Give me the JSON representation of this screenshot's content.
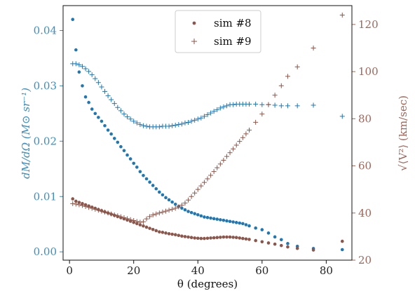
{
  "chart_data": {
    "type": "scatter",
    "title": "",
    "xlabel": "θ (degrees)",
    "ylabel_left": "dM/dΩ (M⊙ sr⁻¹)",
    "ylabel_right": "√⟨V²⟩ (km/sec)",
    "xlim": [
      -2,
      88
    ],
    "ylim_left": [
      -0.0015,
      0.0445
    ],
    "ylim_right": [
      20,
      128
    ],
    "x_ticks": [
      "0",
      "20",
      "40",
      "60",
      "80"
    ],
    "x_tick_values": [
      0,
      20,
      40,
      60,
      80
    ],
    "left_ticks": [
      "0.00",
      "0.01",
      "0.02",
      "0.03",
      "0.04"
    ],
    "left_tick_values": [
      0,
      0.01,
      0.02,
      0.03,
      0.04
    ],
    "right_ticks": [
      "20",
      "40",
      "60",
      "80",
      "100",
      "120"
    ],
    "right_tick_values": [
      20,
      40,
      60,
      80,
      100,
      120
    ],
    "legend_position": "upper-center",
    "colors": {
      "left_axis": "#3b8fc3",
      "right_axis": "#a0665a",
      "blue_series": "#1f77b4",
      "brown_series": "#8c564b"
    },
    "series": [
      {
        "name": "sim #8",
        "axis": "left",
        "marker": "dot",
        "color": "#1f77b4",
        "x": [
          1,
          2,
          3,
          4,
          5,
          6,
          7,
          8,
          9,
          10,
          11,
          12,
          13,
          14,
          15,
          16,
          17,
          18,
          19,
          20,
          21,
          22,
          23,
          24,
          25,
          26,
          27,
          28,
          29,
          30,
          31,
          32,
          33,
          34,
          35,
          36,
          37,
          38,
          39,
          40,
          41,
          42,
          43,
          44,
          45,
          46,
          47,
          48,
          49,
          50,
          51,
          52,
          53,
          54,
          55,
          56,
          58,
          60,
          62,
          64,
          66,
          68,
          71,
          76,
          85
        ],
        "y": [
          0.042,
          0.0365,
          0.0325,
          0.03,
          0.028,
          0.027,
          0.0258,
          0.025,
          0.0243,
          0.0236,
          0.0228,
          0.022,
          0.0213,
          0.0205,
          0.0198,
          0.019,
          0.0183,
          0.0175,
          0.0168,
          0.016,
          0.0153,
          0.0145,
          0.0138,
          0.0132,
          0.0126,
          0.012,
          0.0114,
          0.0108,
          0.0103,
          0.0098,
          0.0094,
          0.009,
          0.0086,
          0.0082,
          0.0079,
          0.0076,
          0.0073,
          0.0071,
          0.0069,
          0.0067,
          0.0065,
          0.0063,
          0.0062,
          0.0061,
          0.006,
          0.0059,
          0.0058,
          0.0057,
          0.0056,
          0.0055,
          0.0054,
          0.0053,
          0.0052,
          0.0051,
          0.0049,
          0.0047,
          0.0043,
          0.004,
          0.0034,
          0.0027,
          0.0022,
          0.0015,
          0.001,
          0.0006,
          0.0004
        ]
      },
      {
        "name": "sim #9",
        "axis": "left",
        "marker": "plus",
        "color": "#1f77b4",
        "x": [
          1,
          2,
          3,
          4,
          5,
          6,
          7,
          8,
          9,
          10,
          11,
          12,
          13,
          14,
          15,
          16,
          17,
          18,
          19,
          20,
          21,
          22,
          23,
          24,
          25,
          26,
          27,
          28,
          29,
          30,
          31,
          32,
          33,
          34,
          35,
          36,
          37,
          38,
          39,
          40,
          41,
          42,
          43,
          44,
          45,
          46,
          47,
          48,
          49,
          50,
          51,
          52,
          53,
          54,
          55,
          56,
          58,
          60,
          62,
          64,
          66,
          68,
          71,
          76,
          85
        ],
        "y": [
          0.034,
          0.034,
          0.0338,
          0.0335,
          0.0331,
          0.0326,
          0.032,
          0.0313,
          0.0306,
          0.0298,
          0.029,
          0.0282,
          0.0275,
          0.0268,
          0.0261,
          0.0255,
          0.0249,
          0.0244,
          0.024,
          0.0236,
          0.0233,
          0.023,
          0.0228,
          0.0227,
          0.0226,
          0.0226,
          0.0226,
          0.0226,
          0.0227,
          0.0227,
          0.0227,
          0.0228,
          0.0229,
          0.023,
          0.0231,
          0.0233,
          0.0234,
          0.0236,
          0.0238,
          0.024,
          0.0242,
          0.0245,
          0.0248,
          0.0251,
          0.0254,
          0.0257,
          0.026,
          0.0262,
          0.0264,
          0.0266,
          0.0266,
          0.0267,
          0.0267,
          0.0267,
          0.0267,
          0.0267,
          0.0267,
          0.0266,
          0.0266,
          0.0265,
          0.0264,
          0.0264,
          0.0264,
          0.0265,
          0.0245
        ]
      },
      {
        "name": "",
        "axis": "right",
        "marker": "dot",
        "color": "#8c564b",
        "x": [
          1,
          2,
          3,
          4,
          5,
          6,
          7,
          8,
          9,
          10,
          11,
          12,
          13,
          14,
          15,
          16,
          17,
          18,
          19,
          20,
          21,
          22,
          23,
          24,
          25,
          26,
          27,
          28,
          29,
          30,
          31,
          32,
          33,
          34,
          35,
          36,
          37,
          38,
          39,
          40,
          41,
          42,
          43,
          44,
          45,
          46,
          47,
          48,
          49,
          50,
          51,
          52,
          53,
          54,
          55,
          56,
          58,
          60,
          62,
          64,
          66,
          68,
          71,
          76,
          85
        ],
        "y": [
          46,
          45,
          44.5,
          44,
          43.5,
          43,
          42.5,
          42,
          41.5,
          41,
          40.5,
          40,
          39.5,
          39,
          38.5,
          38,
          37.5,
          37,
          36.5,
          36,
          35.5,
          35,
          34.5,
          34,
          33.5,
          33,
          32.5,
          32,
          31.8,
          31.5,
          31.2,
          31,
          30.8,
          30.5,
          30.2,
          30,
          29.8,
          29.6,
          29.4,
          29.3,
          29.2,
          29.2,
          29.3,
          29.4,
          29.5,
          29.6,
          29.7,
          29.8,
          29.8,
          29.8,
          29.7,
          29.6,
          29.4,
          29.2,
          29,
          28.8,
          28.3,
          27.8,
          27.3,
          26.8,
          26.2,
          25.6,
          25,
          24.3,
          28
        ]
      },
      {
        "name": "",
        "axis": "right",
        "marker": "plus",
        "color": "#8c564b",
        "x": [
          1,
          2,
          3,
          4,
          5,
          6,
          7,
          8,
          9,
          10,
          11,
          12,
          13,
          14,
          15,
          16,
          17,
          18,
          19,
          20,
          21,
          22,
          23,
          24,
          25,
          26,
          27,
          28,
          29,
          30,
          31,
          32,
          33,
          34,
          35,
          36,
          37,
          38,
          39,
          40,
          41,
          42,
          43,
          44,
          45,
          46,
          47,
          48,
          49,
          50,
          51,
          52,
          53,
          54,
          55,
          56,
          58,
          60,
          62,
          64,
          66,
          68,
          71,
          76,
          85
        ],
        "y": [
          44,
          43.8,
          43.5,
          43.2,
          42.8,
          42.4,
          42,
          41.6,
          41.2,
          40.8,
          40.4,
          40,
          39.6,
          39.2,
          38.8,
          38.4,
          38,
          37.6,
          37.2,
          36.8,
          36.4,
          36.1,
          36.3,
          37.5,
          38.5,
          39.2,
          39.6,
          40,
          40.4,
          40.8,
          41.2,
          41.6,
          42,
          42.6,
          43.3,
          44.2,
          45.5,
          47,
          48.5,
          50,
          51.5,
          53,
          54.5,
          56,
          57.6,
          59.2,
          60.8,
          62.4,
          64,
          65.6,
          67.2,
          68.8,
          70.4,
          72,
          73.6,
          75.2,
          78.5,
          82,
          86,
          90,
          94,
          98,
          102,
          110,
          124
        ]
      }
    ]
  }
}
